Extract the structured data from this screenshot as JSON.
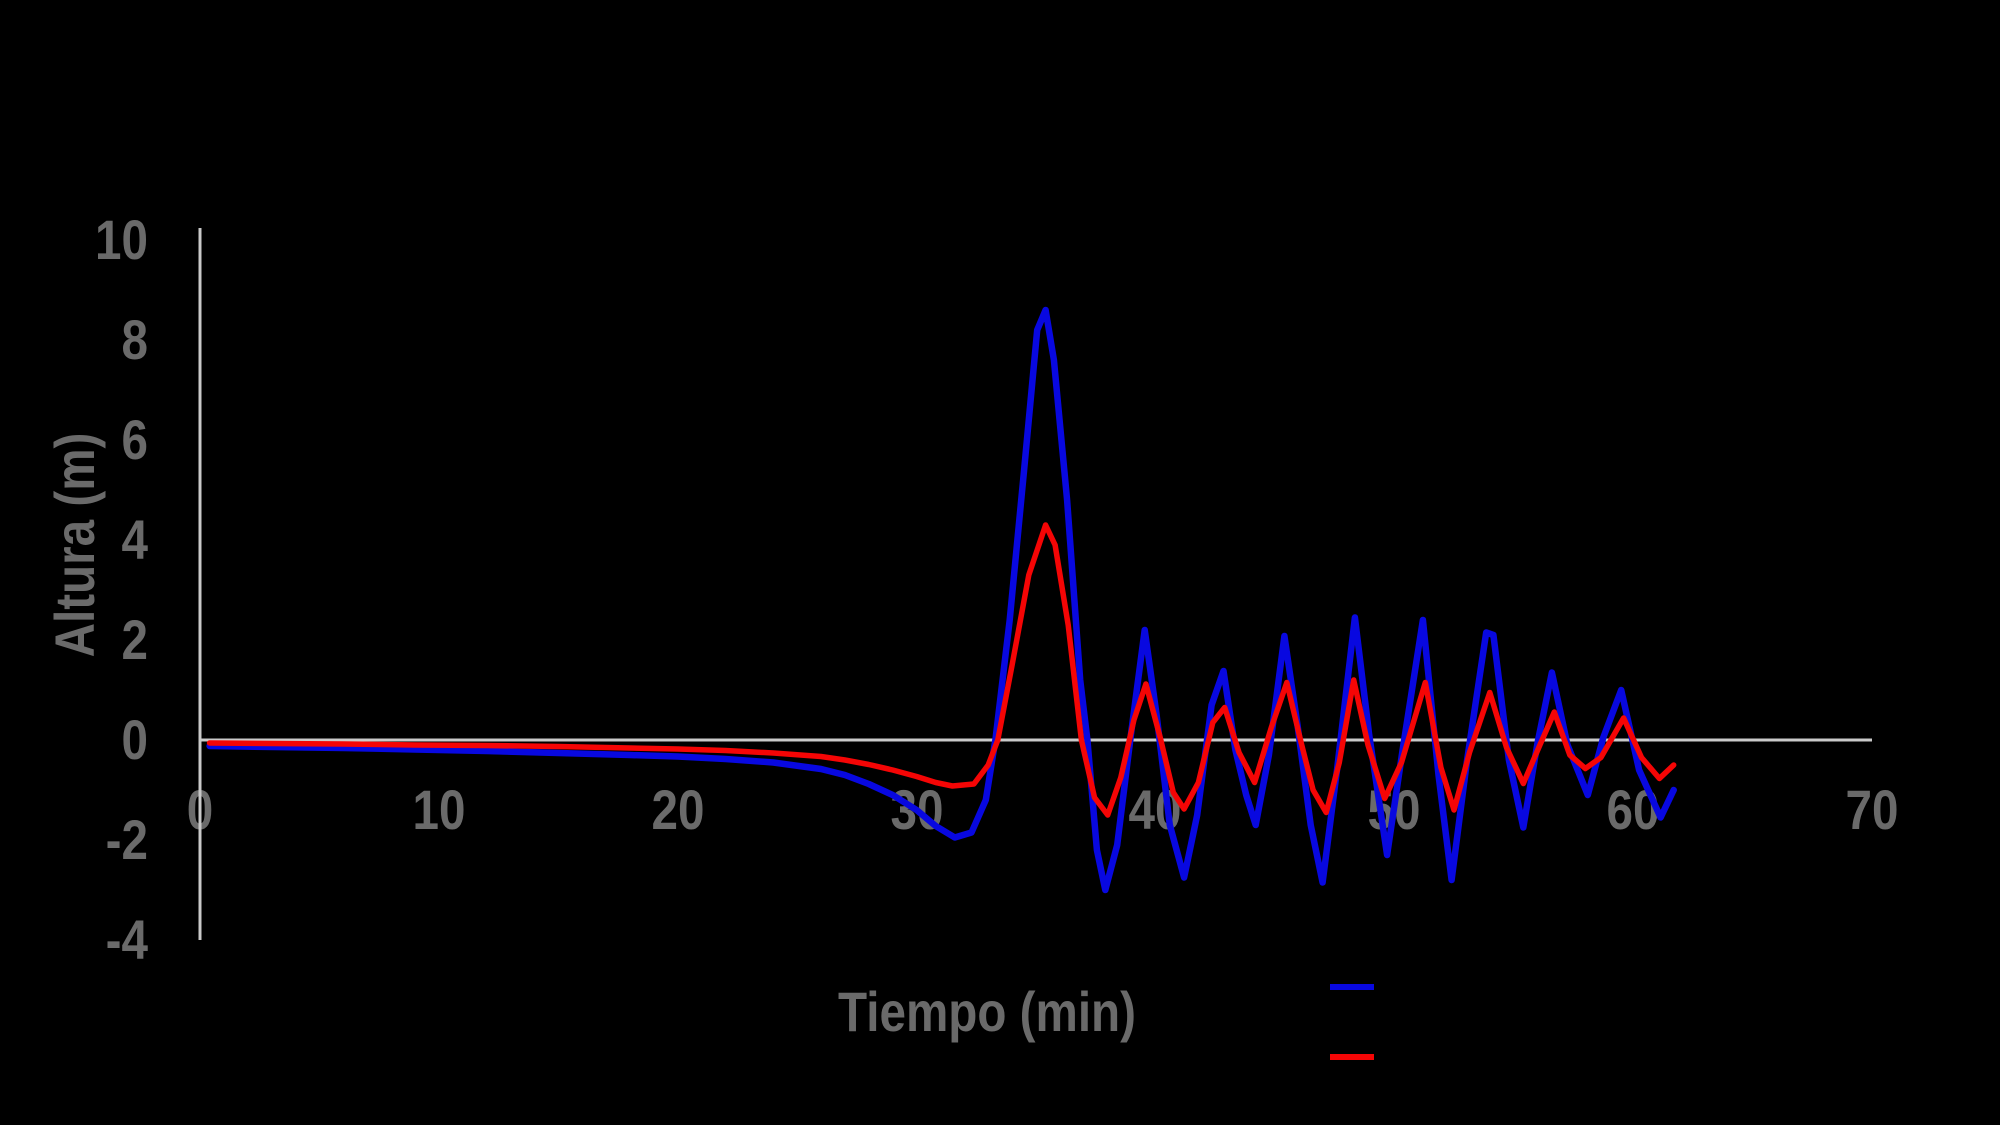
{
  "chart": {
    "background": "#000000",
    "text_color": "#6a6a6a",
    "axis_line_color": "#c9c9c9",
    "y_title": "Altura (m)",
    "x_title": "Tiempo (min)",
    "y_ticks": [
      10,
      8,
      6,
      4,
      2,
      0,
      -2,
      -4
    ],
    "x_ticks": [
      0,
      10,
      20,
      30,
      40,
      50,
      60,
      70
    ],
    "legend": {
      "items": [
        {
          "series": "blue",
          "color": "#0808e0"
        },
        {
          "series": "red",
          "color": "#f50505"
        }
      ]
    }
  },
  "chart_data": {
    "type": "line",
    "title": "",
    "xlabel": "Tiempo (min)",
    "ylabel": "Altura (m)",
    "xlim": [
      0,
      70
    ],
    "ylim": [
      -4,
      10
    ],
    "grid": false,
    "legend_position": "bottom-right",
    "series": [
      {
        "id": "blue",
        "label": "",
        "color": "#0808e0",
        "stroke_width": 6.5,
        "points": [
          [
            0.4,
            -0.12
          ],
          [
            3,
            -0.14
          ],
          [
            6,
            -0.16
          ],
          [
            9,
            -0.19
          ],
          [
            12,
            -0.22
          ],
          [
            15,
            -0.26
          ],
          [
            18,
            -0.3
          ],
          [
            20,
            -0.33
          ],
          [
            22,
            -0.38
          ],
          [
            24,
            -0.45
          ],
          [
            26,
            -0.58
          ],
          [
            27,
            -0.7
          ],
          [
            28,
            -0.88
          ],
          [
            29,
            -1.1
          ],
          [
            30,
            -1.4
          ],
          [
            30.8,
            -1.72
          ],
          [
            31.6,
            -1.95
          ],
          [
            32.3,
            -1.85
          ],
          [
            32.9,
            -1.2
          ],
          [
            33.3,
            0
          ],
          [
            33.9,
            2.4
          ],
          [
            34.5,
            5.4
          ],
          [
            35.05,
            8.2
          ],
          [
            35.4,
            8.6
          ],
          [
            35.75,
            7.6
          ],
          [
            36.3,
            4.8
          ],
          [
            36.85,
            1.2
          ],
          [
            37.15,
            0
          ],
          [
            37.55,
            -2.2
          ],
          [
            37.9,
            -3.0
          ],
          [
            38.4,
            -2.1
          ],
          [
            39.0,
            0.2
          ],
          [
            39.55,
            2.2
          ],
          [
            40.05,
            0.5
          ],
          [
            40.6,
            -1.7
          ],
          [
            41.2,
            -2.75
          ],
          [
            41.75,
            -1.5
          ],
          [
            42.35,
            0.7
          ],
          [
            42.85,
            1.38
          ],
          [
            43.35,
            -0.2
          ],
          [
            43.8,
            -1.1
          ],
          [
            44.2,
            -1.7
          ],
          [
            44.75,
            -0.3
          ],
          [
            45.4,
            2.08
          ],
          [
            45.95,
            0.3
          ],
          [
            46.5,
            -1.7
          ],
          [
            47.0,
            -2.85
          ],
          [
            47.6,
            -0.6
          ],
          [
            48.35,
            2.45
          ],
          [
            48.95,
            0.1
          ],
          [
            49.7,
            -2.3
          ],
          [
            50.35,
            -0.2
          ],
          [
            51.2,
            2.4
          ],
          [
            51.85,
            -0.7
          ],
          [
            52.4,
            -2.8
          ],
          [
            53.05,
            -0.4
          ],
          [
            53.85,
            2.15
          ],
          [
            54.15,
            2.1
          ],
          [
            54.8,
            -0.4
          ],
          [
            55.4,
            -1.75
          ],
          [
            56.0,
            -0.05
          ],
          [
            56.6,
            1.35
          ],
          [
            57.25,
            -0.1
          ],
          [
            58.1,
            -1.1
          ],
          [
            58.75,
            0.05
          ],
          [
            59.5,
            1.0
          ],
          [
            60.25,
            -0.6
          ],
          [
            61.15,
            -1.55
          ],
          [
            61.7,
            -1.0
          ]
        ]
      },
      {
        "id": "red",
        "label": "",
        "color": "#f50505",
        "stroke_width": 5.5,
        "points": [
          [
            0.4,
            -0.06
          ],
          [
            3,
            -0.07
          ],
          [
            6,
            -0.08
          ],
          [
            9,
            -0.1
          ],
          [
            12,
            -0.11
          ],
          [
            15,
            -0.13
          ],
          [
            18,
            -0.16
          ],
          [
            20,
            -0.18
          ],
          [
            22,
            -0.21
          ],
          [
            24,
            -0.26
          ],
          [
            26,
            -0.33
          ],
          [
            27,
            -0.4
          ],
          [
            28,
            -0.49
          ],
          [
            29,
            -0.6
          ],
          [
            30,
            -0.73
          ],
          [
            30.8,
            -0.85
          ],
          [
            31.5,
            -0.92
          ],
          [
            32.4,
            -0.88
          ],
          [
            33.0,
            -0.5
          ],
          [
            33.4,
            0
          ],
          [
            34.0,
            1.5
          ],
          [
            34.7,
            3.3
          ],
          [
            35.4,
            4.3
          ],
          [
            35.8,
            3.9
          ],
          [
            36.35,
            2.3
          ],
          [
            36.9,
            0
          ],
          [
            37.45,
            -1.15
          ],
          [
            38.0,
            -1.5
          ],
          [
            38.55,
            -0.75
          ],
          [
            39.1,
            0.4
          ],
          [
            39.6,
            1.12
          ],
          [
            40.2,
            0.05
          ],
          [
            40.75,
            -1.05
          ],
          [
            41.2,
            -1.38
          ],
          [
            41.8,
            -0.85
          ],
          [
            42.4,
            0.35
          ],
          [
            42.9,
            0.65
          ],
          [
            43.5,
            -0.25
          ],
          [
            44.15,
            -0.85
          ],
          [
            44.85,
            0.25
          ],
          [
            45.5,
            1.15
          ],
          [
            46.1,
            -0.05
          ],
          [
            46.6,
            -1.0
          ],
          [
            47.15,
            -1.45
          ],
          [
            47.7,
            -0.45
          ],
          [
            48.3,
            1.2
          ],
          [
            48.9,
            -0.1
          ],
          [
            49.6,
            -1.17
          ],
          [
            50.3,
            -0.45
          ],
          [
            51.3,
            1.15
          ],
          [
            51.95,
            -0.55
          ],
          [
            52.5,
            -1.4
          ],
          [
            53.15,
            -0.25
          ],
          [
            54.0,
            0.95
          ],
          [
            54.7,
            -0.15
          ],
          [
            55.4,
            -0.87
          ],
          [
            56.05,
            -0.15
          ],
          [
            56.7,
            0.56
          ],
          [
            57.35,
            -0.3
          ],
          [
            58.0,
            -0.57
          ],
          [
            58.65,
            -0.35
          ],
          [
            59.6,
            0.44
          ],
          [
            60.35,
            -0.35
          ],
          [
            61.1,
            -0.77
          ],
          [
            61.7,
            -0.5
          ]
        ]
      }
    ]
  }
}
